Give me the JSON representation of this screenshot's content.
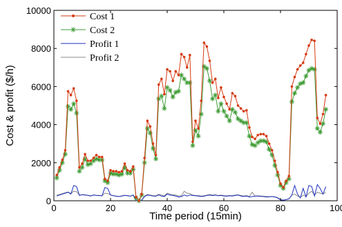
{
  "chart_data": {
    "type": "line",
    "title": "",
    "xlabel": "Time period (15min)",
    "ylabel": "Cost & profit ($/h)",
    "xlim": [
      0,
      100
    ],
    "ylim": [
      0,
      10000
    ],
    "xticks": [
      0,
      20,
      40,
      60,
      80,
      100
    ],
    "yticks": [
      0,
      2000,
      4000,
      6000,
      8000,
      10000
    ],
    "legend_position": "top-left",
    "grid": false,
    "series": [
      {
        "name": "Cost 1",
        "color": "#d63a10",
        "marker": "dot",
        "x": [
          1,
          2,
          3,
          4,
          5,
          6,
          7,
          8,
          9,
          10,
          11,
          12,
          13,
          14,
          15,
          16,
          17,
          18,
          19,
          20,
          21,
          22,
          23,
          24,
          25,
          26,
          27,
          28,
          29,
          30,
          31,
          32,
          33,
          34,
          35,
          36,
          37,
          38,
          39,
          40,
          41,
          42,
          43,
          44,
          45,
          46,
          47,
          48,
          49,
          50,
          51,
          52,
          53,
          54,
          55,
          56,
          57,
          58,
          59,
          60,
          61,
          62,
          63,
          64,
          65,
          66,
          67,
          68,
          69,
          70,
          71,
          72,
          73,
          74,
          75,
          76,
          77,
          78,
          79,
          80,
          81,
          82,
          83,
          84,
          85,
          86,
          87,
          88,
          89,
          90,
          91,
          92,
          93,
          94,
          95,
          96
        ],
        "values": [
          1350,
          1750,
          2150,
          2650,
          5750,
          5550,
          5900,
          5250,
          1750,
          1950,
          2450,
          2100,
          2100,
          2250,
          2400,
          2300,
          2300,
          1150,
          1050,
          1600,
          1550,
          1550,
          1500,
          1550,
          1950,
          1600,
          1550,
          1800,
          200,
          0,
          350,
          2250,
          4200,
          3900,
          3000,
          2400,
          6100,
          6400,
          5600,
          6900,
          6800,
          6300,
          6800,
          6600,
          7700,
          7550,
          7000,
          7650,
          3100,
          4200,
          3800,
          5250,
          8300,
          8100,
          7350,
          6200,
          6400,
          5400,
          5950,
          5450,
          5100,
          4800,
          5650,
          5500,
          5000,
          4850,
          4700,
          4750,
          3850,
          3350,
          3250,
          3450,
          3500,
          3500,
          3400,
          3000,
          2650,
          2100,
          1500,
          900,
          700,
          1050,
          1300,
          6000,
          6500,
          6900,
          7100,
          7250,
          7700,
          8150,
          8450,
          8400,
          4350,
          4050,
          4550,
          5550
        ]
      },
      {
        "name": "Cost 2",
        "color": "#3f9c35",
        "marker": "star",
        "x": [
          1,
          2,
          3,
          4,
          5,
          6,
          7,
          8,
          9,
          10,
          11,
          12,
          13,
          14,
          15,
          16,
          17,
          18,
          19,
          20,
          21,
          22,
          23,
          24,
          25,
          26,
          27,
          28,
          29,
          30,
          31,
          32,
          33,
          34,
          35,
          36,
          37,
          38,
          39,
          40,
          41,
          42,
          43,
          44,
          45,
          46,
          47,
          48,
          49,
          50,
          51,
          52,
          53,
          54,
          55,
          56,
          57,
          58,
          59,
          60,
          61,
          62,
          63,
          64,
          65,
          66,
          67,
          68,
          69,
          70,
          71,
          72,
          73,
          74,
          75,
          76,
          77,
          78,
          79,
          80,
          81,
          82,
          83,
          84,
          85,
          86,
          87,
          88,
          89,
          90,
          91,
          92,
          93,
          94,
          95,
          96
        ],
        "values": [
          1200,
          1600,
          2000,
          2450,
          4950,
          4800,
          5100,
          4600,
          1550,
          1750,
          2200,
          1900,
          1950,
          2100,
          2200,
          2150,
          2150,
          1050,
          950,
          1450,
          1400,
          1400,
          1350,
          1400,
          1750,
          1450,
          1450,
          1650,
          150,
          0,
          300,
          2000,
          3800,
          3550,
          2750,
          2200,
          5350,
          5500,
          4850,
          5950,
          5800,
          5450,
          5700,
          5750,
          6600,
          6400,
          6200,
          6200,
          2900,
          3700,
          3400,
          4550,
          7050,
          6950,
          6300,
          5350,
          5550,
          4700,
          5100,
          4700,
          4450,
          4200,
          4800,
          4650,
          4300,
          4200,
          4100,
          4100,
          3400,
          2950,
          2900,
          3050,
          3150,
          3150,
          3100,
          2700,
          2400,
          1850,
          1350,
          800,
          650,
          950,
          1150,
          5200,
          5650,
          5950,
          6150,
          6200,
          6550,
          6850,
          6950,
          6900,
          3800,
          3600,
          4050,
          4800
        ]
      },
      {
        "name": "Profit 1",
        "color": "#1d2fbf",
        "marker": "none",
        "x": [
          1,
          2,
          3,
          4,
          5,
          6,
          7,
          8,
          9,
          10,
          11,
          12,
          13,
          14,
          15,
          16,
          17,
          18,
          19,
          20,
          21,
          22,
          23,
          24,
          25,
          26,
          27,
          28,
          29,
          30,
          31,
          32,
          33,
          34,
          35,
          36,
          37,
          38,
          39,
          40,
          41,
          42,
          43,
          44,
          45,
          46,
          47,
          48,
          49,
          50,
          51,
          52,
          53,
          54,
          55,
          56,
          57,
          58,
          59,
          60,
          61,
          62,
          63,
          64,
          65,
          66,
          67,
          68,
          69,
          70,
          71,
          72,
          73,
          74,
          75,
          76,
          77,
          78,
          79,
          80,
          81,
          82,
          83,
          84,
          85,
          86,
          87,
          88,
          89,
          90,
          91,
          92,
          93,
          94,
          95,
          96
        ],
        "values": [
          250,
          300,
          350,
          400,
          450,
          350,
          800,
          750,
          280,
          320,
          300,
          280,
          250,
          300,
          280,
          270,
          260,
          700,
          650,
          300,
          260,
          240,
          220,
          250,
          280,
          260,
          240,
          300,
          30,
          0,
          30,
          220,
          300,
          280,
          250,
          240,
          300,
          250,
          220,
          350,
          300,
          280,
          250,
          200,
          220,
          300,
          250,
          300,
          280,
          260,
          250,
          220,
          240,
          280,
          300,
          270,
          300,
          260,
          280,
          250,
          240,
          260,
          250,
          280,
          300,
          250,
          230,
          250,
          200,
          220,
          240,
          250,
          230,
          220,
          200,
          210,
          220,
          200,
          150,
          50,
          30,
          60,
          100,
          300,
          800,
          350,
          150,
          650,
          200,
          800,
          750,
          250,
          850,
          650,
          350,
          750
        ]
      },
      {
        "name": "Profit 2",
        "color": "#8a8a8a",
        "marker": "none",
        "x": [
          1,
          2,
          3,
          4,
          5,
          6,
          7,
          8,
          9,
          10,
          11,
          12,
          13,
          14,
          15,
          16,
          17,
          18,
          19,
          20,
          21,
          22,
          23,
          24,
          25,
          26,
          27,
          28,
          29,
          30,
          31,
          32,
          33,
          34,
          35,
          36,
          37,
          38,
          39,
          40,
          41,
          42,
          43,
          44,
          45,
          46,
          47,
          48,
          49,
          50,
          51,
          52,
          53,
          54,
          55,
          56,
          57,
          58,
          59,
          60,
          61,
          62,
          63,
          64,
          65,
          66,
          67,
          68,
          69,
          70,
          71,
          72,
          73,
          74,
          75,
          76,
          77,
          78,
          79,
          80,
          81,
          82,
          83,
          84,
          85,
          86,
          87,
          88,
          89,
          90,
          91,
          92,
          93,
          94,
          95,
          96
        ],
        "values": [
          300,
          330,
          380,
          420,
          460,
          380,
          500,
          480,
          300,
          330,
          310,
          290,
          260,
          310,
          290,
          280,
          270,
          400,
          380,
          310,
          270,
          250,
          230,
          260,
          290,
          270,
          250,
          310,
          40,
          0,
          40,
          250,
          330,
          300,
          270,
          260,
          350,
          300,
          260,
          400,
          350,
          320,
          300,
          250,
          260,
          500,
          400,
          380,
          300,
          280,
          270,
          250,
          260,
          300,
          330,
          300,
          320,
          280,
          300,
          270,
          260,
          280,
          270,
          300,
          320,
          280,
          250,
          270,
          230,
          450,
          250,
          260,
          250,
          240,
          230,
          220,
          230,
          210,
          170,
          60,
          40,
          70,
          110,
          300,
          350,
          250,
          180,
          300,
          220,
          400,
          500,
          300,
          450,
          400,
          350,
          450
        ]
      }
    ]
  }
}
